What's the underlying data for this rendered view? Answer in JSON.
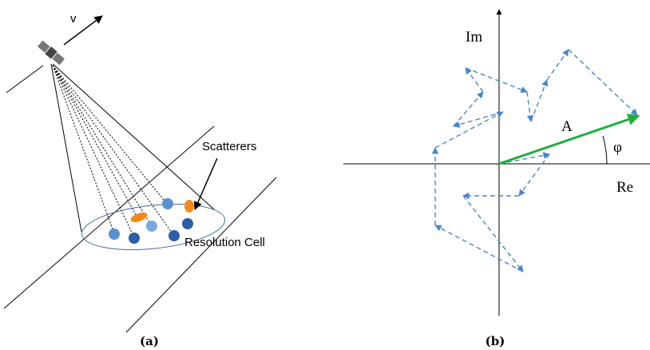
{
  "panel_a": {
    "velocity_label": "v",
    "scatterers_label": "Scatterers",
    "cell_label": "Resolution Cell",
    "caption": "(a)"
  },
  "panel_b": {
    "imag_label": "Im",
    "real_label": "Re",
    "amplitude_label": "A",
    "phase_label": "φ",
    "caption": "(b)"
  }
}
